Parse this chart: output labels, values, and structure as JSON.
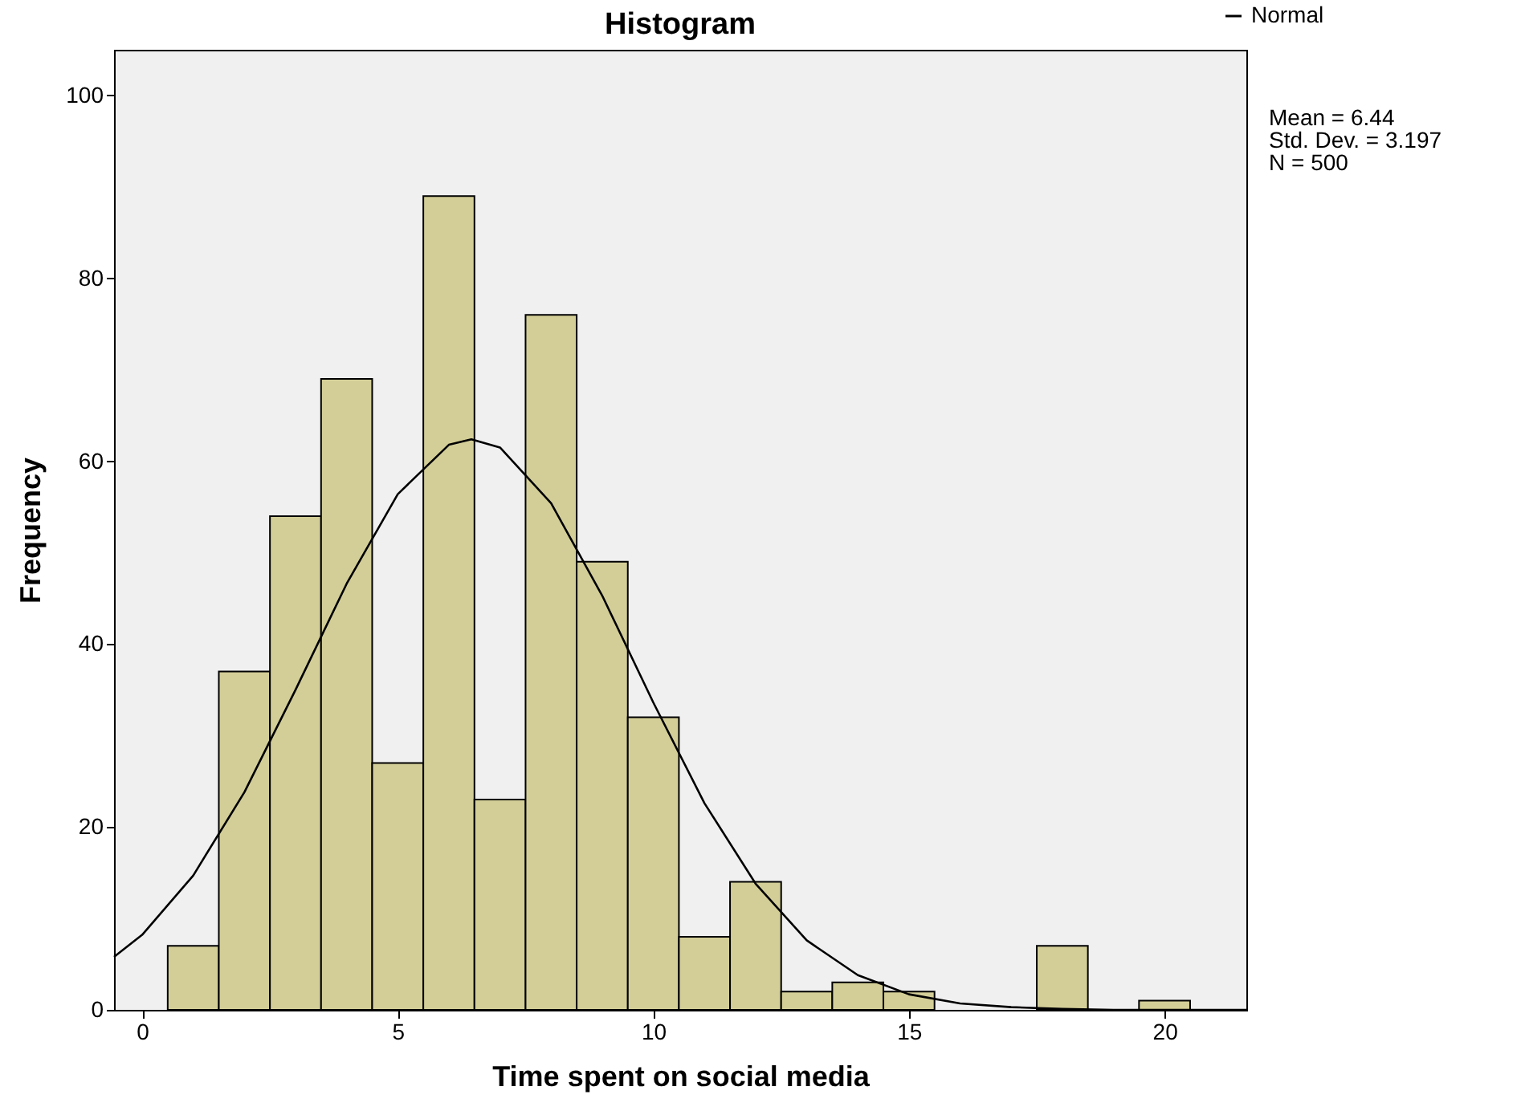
{
  "chart_data": {
    "type": "histogram",
    "title": "Histogram",
    "xlabel": "Time spent on social media",
    "ylabel": "Frequency",
    "bins": [
      0.5,
      1.5,
      2.5,
      3.5,
      4.5,
      5.5,
      6.5,
      7.5,
      8.5,
      9.5,
      10.5,
      11.5,
      12.5,
      13.5,
      14.5,
      15.5,
      16.5,
      17.5,
      18.5,
      19.5,
      20.5
    ],
    "series": [
      {
        "color": "#d3ce97",
        "values": [
          7,
          37,
          54,
          69,
          27,
          89,
          23,
          76,
          49,
          32,
          8,
          14,
          2,
          3,
          2,
          0,
          0,
          7,
          0,
          1
        ]
      },
      {
        "type": "line",
        "name": "Normal",
        "color": "#000000",
        "x": [
          -0.55,
          0,
          1,
          2,
          3,
          4,
          5,
          6,
          6.44,
          7,
          8,
          9,
          10,
          11,
          12,
          13,
          14,
          15,
          16,
          17,
          18,
          19,
          20,
          21.6
        ],
        "values": [
          5.8,
          8.2,
          14.7,
          23.8,
          35,
          46.6,
          56.4,
          61.8,
          62.4,
          61.5,
          55.4,
          45.3,
          33.6,
          22.6,
          13.8,
          7.6,
          3.8,
          1.7,
          0.7,
          0.3,
          0.1,
          0,
          0,
          0
        ]
      }
    ],
    "xlim": [
      -0.55,
      21.6
    ],
    "xticks": [
      0,
      5,
      10,
      15,
      20
    ],
    "ylim": [
      0,
      105
    ],
    "yticks": [
      0,
      20,
      40,
      60,
      80,
      100
    ],
    "grid": false,
    "legend": "top right",
    "line_style": "solid",
    "marker": "none",
    "annotations": [
      "Mean = 6.44",
      "Std. Dev. = 3.197",
      "N = 500"
    ]
  }
}
